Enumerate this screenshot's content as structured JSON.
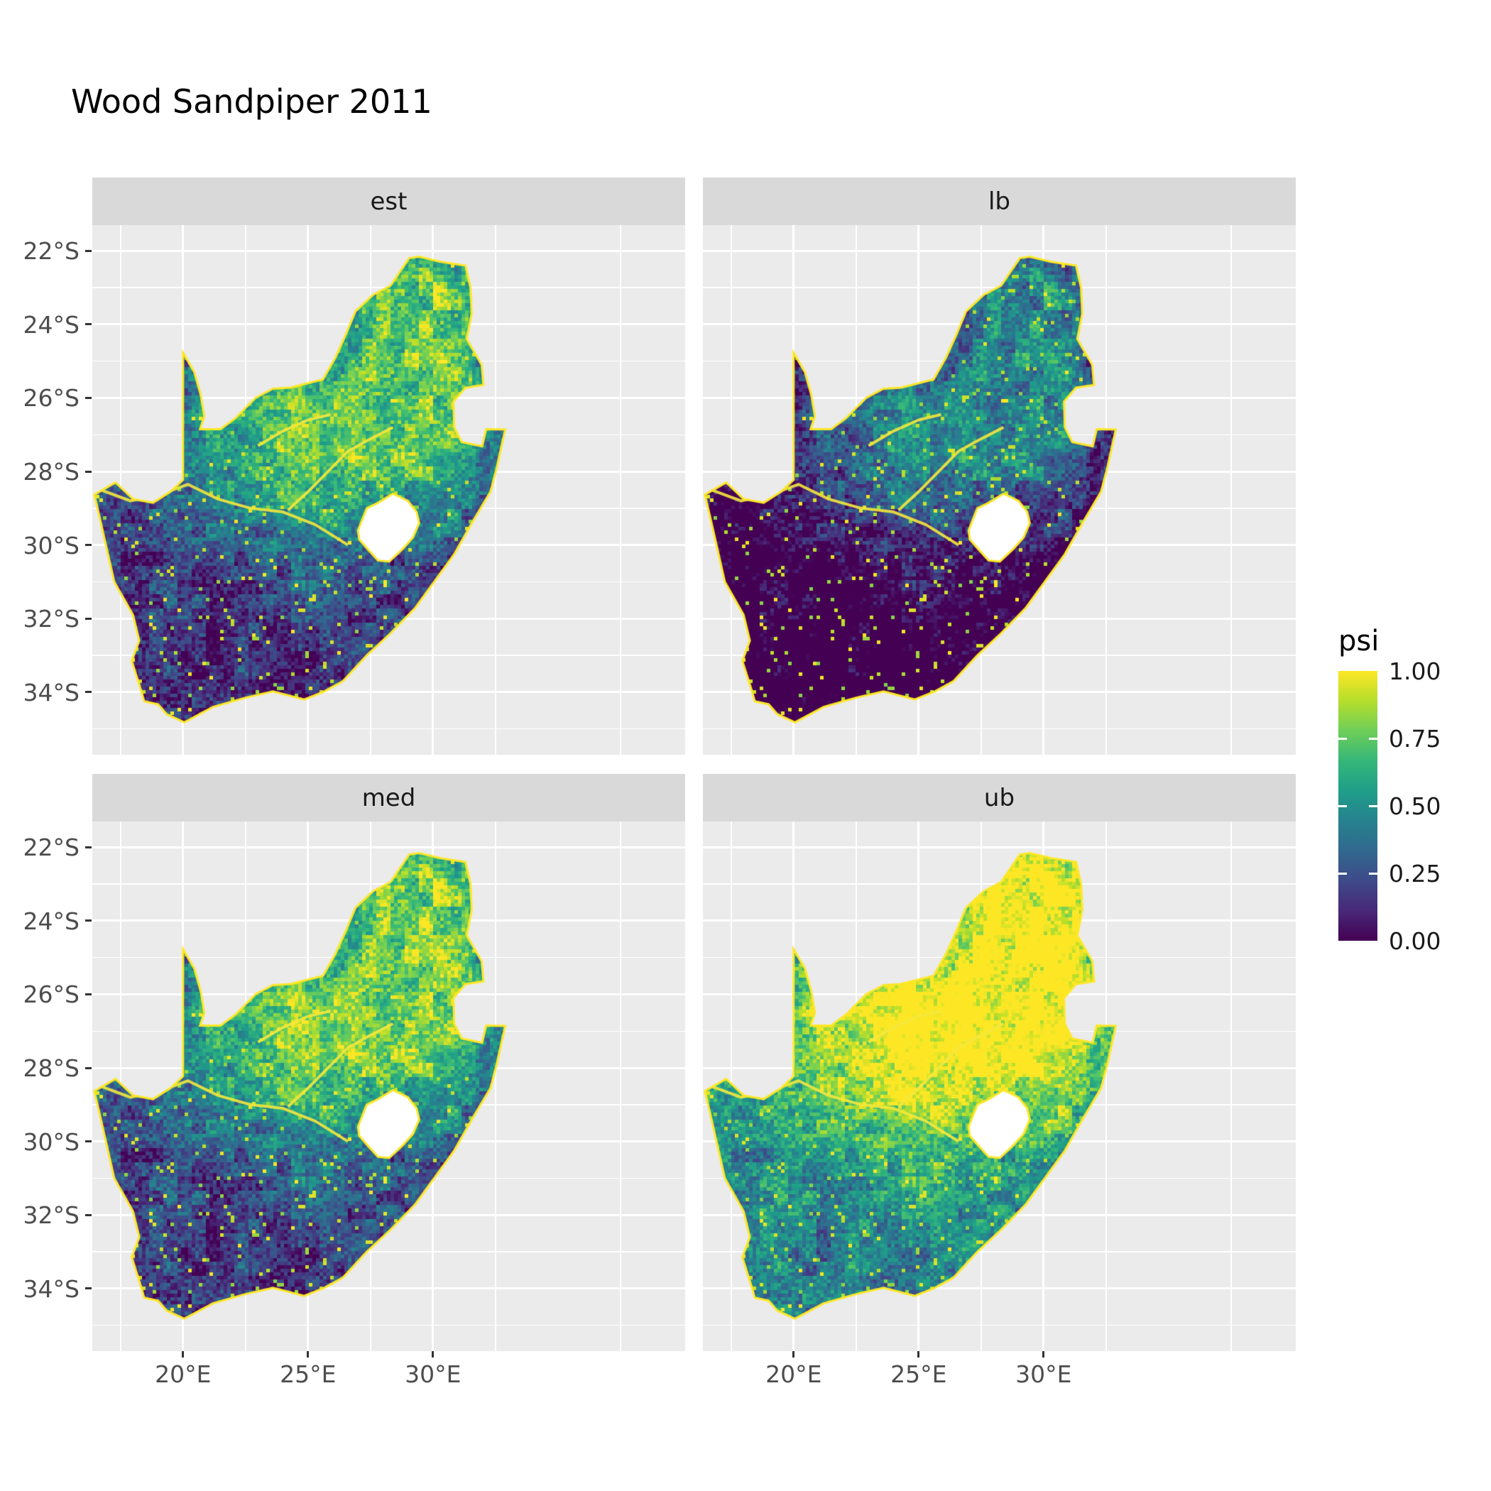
{
  "title": "Wood Sandpiper 2011",
  "chart_data": {
    "type": "heatmap",
    "variant": "faceted raster occupancy-probability map of South Africa (Lesotho shown as hole)",
    "title": "Wood Sandpiper 2011",
    "facets": [
      {
        "id": "est",
        "label": "est",
        "psi_offset": 0.0,
        "approx_mean_psi": 0.45
      },
      {
        "id": "lb",
        "label": "lb",
        "psi_offset": -0.27,
        "approx_mean_psi": 0.2
      },
      {
        "id": "med",
        "label": "med",
        "psi_offset": 0.05,
        "approx_mean_psi": 0.5
      },
      {
        "id": "ub",
        "label": "ub",
        "psi_offset": 0.32,
        "approx_mean_psi": 0.75
      }
    ],
    "x_axis": {
      "tick_labels": [
        "20°E",
        "25°E",
        "30°E"
      ],
      "tick_values": [
        20,
        25,
        30
      ],
      "minor_values": [
        17.5,
        22.5,
        27.5,
        32.5,
        37.5
      ]
    },
    "y_axis": {
      "tick_labels": [
        "22°S",
        "24°S",
        "26°S",
        "28°S",
        "30°S",
        "32°S",
        "34°S"
      ],
      "tick_values": [
        -22,
        -24,
        -26,
        -28,
        -30,
        -32,
        -34
      ],
      "minor_values": [
        -23,
        -25,
        -27,
        -29,
        -31,
        -33,
        -35
      ]
    },
    "legend": {
      "title": "psi",
      "tick_labels": [
        "1.00",
        "0.75",
        "0.50",
        "0.25",
        "0.00"
      ],
      "tick_values": [
        1.0,
        0.75,
        0.5,
        0.25,
        0.0
      ]
    },
    "colormap": {
      "name": "viridis",
      "stops": [
        "#440154",
        "#482878",
        "#3e4a89",
        "#31688e",
        "#26828e",
        "#1f9e89",
        "#35b779",
        "#6ece58",
        "#b5de2b",
        "#fde725"
      ]
    },
    "value_range": [
      0,
      1
    ],
    "high_psi_region": "north-central interior and along Orange/Vaal river lines; country edge ring near 1",
    "low_psi_region": "southern and western Cape interior, far north-west"
  },
  "colors": {
    "background": "#ffffff",
    "panel_bg": "#ebebeb",
    "strip_bg": "#d9d9d9",
    "grid_major": "#ffffff",
    "axis_text": "#4d4d4d",
    "tick_mark": "#333333",
    "strip_text": "#1a1a1a",
    "title_text": "#000000",
    "country_outline": "#fde725",
    "lesotho_fill": "#ffffff"
  }
}
